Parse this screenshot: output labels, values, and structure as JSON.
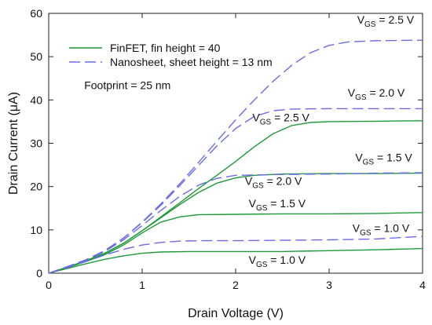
{
  "chart_data": {
    "type": "line",
    "xlabel": "Drain Voltage (V)",
    "ylabel": "Drain Current (μA)",
    "xlim": [
      0,
      4
    ],
    "ylim": [
      0,
      60
    ],
    "x_ticks": [
      0,
      1,
      2,
      3,
      4
    ],
    "y_ticks": [
      0,
      10,
      20,
      30,
      40,
      50,
      60
    ],
    "grid": false,
    "legend_position": "top-left",
    "legend": [
      {
        "label": "FinFET, fin height = 40",
        "style": "solid",
        "color": "#1f9a3a"
      },
      {
        "label": "Nanosheet, sheet height = 13 nm",
        "style": "dashed",
        "color": "#6b6be8"
      }
    ],
    "annotations": [
      {
        "text": "Footprint = 25 nm",
        "x": 0.38,
        "y": 42.5
      }
    ],
    "series": [
      {
        "group": "FinFET",
        "vgs": "2.5 V",
        "style": "solid",
        "color": "#1f9a3a",
        "label": {
          "prefix": "V",
          "sub": "GS",
          "suffix": " = 2.5 V",
          "x": 2.18,
          "y": 35.1
        },
        "points": [
          [
            0,
            0
          ],
          [
            0.2,
            1.4
          ],
          [
            0.4,
            2.9
          ],
          [
            0.6,
            4.6
          ],
          [
            0.8,
            6.9
          ],
          [
            1.0,
            9.8
          ],
          [
            1.2,
            13.0
          ],
          [
            1.4,
            16.2
          ],
          [
            1.6,
            19.5
          ],
          [
            1.8,
            22.6
          ],
          [
            2.0,
            25.8
          ],
          [
            2.2,
            29.2
          ],
          [
            2.4,
            32.2
          ],
          [
            2.6,
            34.1
          ],
          [
            2.8,
            34.8
          ],
          [
            3.0,
            35.0
          ],
          [
            3.5,
            35.1
          ],
          [
            4.0,
            35.2
          ]
        ]
      },
      {
        "group": "FinFET",
        "vgs": "2.0 V",
        "style": "solid",
        "color": "#1f9a3a",
        "label": {
          "prefix": "V",
          "sub": "GS",
          "suffix": " = 2.0 V",
          "x": 2.1,
          "y": 20.4
        },
        "points": [
          [
            0,
            0
          ],
          [
            0.2,
            1.4
          ],
          [
            0.4,
            2.9
          ],
          [
            0.6,
            4.6
          ],
          [
            0.8,
            6.9
          ],
          [
            1.0,
            9.8
          ],
          [
            1.2,
            12.8
          ],
          [
            1.4,
            15.8
          ],
          [
            1.6,
            18.6
          ],
          [
            1.8,
            20.8
          ],
          [
            2.0,
            22.0
          ],
          [
            2.2,
            22.6
          ],
          [
            2.5,
            22.9
          ],
          [
            3.0,
            23.0
          ],
          [
            3.5,
            23.0
          ],
          [
            4.0,
            23.1
          ]
        ]
      },
      {
        "group": "FinFET",
        "vgs": "1.5 V",
        "style": "solid",
        "color": "#1f9a3a",
        "label": {
          "prefix": "V",
          "sub": "GS",
          "suffix": " = 1.5 V",
          "x": 2.14,
          "y": 15.2
        },
        "points": [
          [
            0,
            0
          ],
          [
            0.2,
            1.3
          ],
          [
            0.4,
            2.7
          ],
          [
            0.6,
            4.3
          ],
          [
            0.8,
            6.5
          ],
          [
            1.0,
            9.3
          ],
          [
            1.2,
            11.8
          ],
          [
            1.4,
            13.0
          ],
          [
            1.6,
            13.5
          ],
          [
            2.0,
            13.6
          ],
          [
            2.5,
            13.7
          ],
          [
            3.0,
            13.7
          ],
          [
            3.5,
            13.8
          ],
          [
            4.0,
            14.0
          ]
        ]
      },
      {
        "group": "FinFET",
        "vgs": "1.0 V",
        "style": "solid",
        "color": "#1f9a3a",
        "label": {
          "prefix": "V",
          "sub": "GS",
          "suffix": " = 1.0 V",
          "x": 2.14,
          "y": 2.2
        },
        "points": [
          [
            0,
            0
          ],
          [
            0.2,
            1.1
          ],
          [
            0.4,
            2.2
          ],
          [
            0.6,
            3.2
          ],
          [
            0.8,
            4.0
          ],
          [
            1.0,
            4.6
          ],
          [
            1.2,
            4.9
          ],
          [
            1.5,
            5.0
          ],
          [
            2.0,
            5.0
          ],
          [
            2.5,
            5.0
          ],
          [
            3.0,
            5.2
          ],
          [
            3.5,
            5.4
          ],
          [
            4.0,
            5.7
          ]
        ]
      },
      {
        "group": "Nanosheet",
        "vgs": "2.5 V",
        "style": "dashed",
        "color": "#6b6be8",
        "label": {
          "prefix": "V",
          "sub": "GS",
          "suffix": " = 2.5 V",
          "x": 3.3,
          "y": 57.6
        },
        "points": [
          [
            0,
            0
          ],
          [
            0.2,
            1.5
          ],
          [
            0.4,
            3.1
          ],
          [
            0.6,
            5.2
          ],
          [
            0.8,
            8.1
          ],
          [
            1.0,
            11.8
          ],
          [
            1.2,
            16.0
          ],
          [
            1.4,
            20.6
          ],
          [
            1.6,
            25.5
          ],
          [
            1.8,
            30.5
          ],
          [
            2.0,
            35.4
          ],
          [
            2.2,
            40.0
          ],
          [
            2.4,
            44.3
          ],
          [
            2.6,
            48.0
          ],
          [
            2.8,
            50.9
          ],
          [
            3.0,
            52.6
          ],
          [
            3.2,
            53.4
          ],
          [
            3.5,
            53.7
          ],
          [
            4.0,
            53.8
          ]
        ]
      },
      {
        "group": "Nanosheet",
        "vgs": "2.0 V",
        "style": "dashed",
        "color": "#6b6be8",
        "label": {
          "prefix": "V",
          "sub": "GS",
          "suffix": " = 2.0 V",
          "x": 3.2,
          "y": 40.8
        },
        "points": [
          [
            0,
            0
          ],
          [
            0.2,
            1.5
          ],
          [
            0.4,
            3.1
          ],
          [
            0.6,
            5.2
          ],
          [
            0.8,
            8.1
          ],
          [
            1.0,
            11.7
          ],
          [
            1.2,
            15.7
          ],
          [
            1.4,
            20.2
          ],
          [
            1.6,
            24.8
          ],
          [
            1.8,
            29.4
          ],
          [
            2.0,
            33.4
          ],
          [
            2.2,
            36.2
          ],
          [
            2.4,
            37.5
          ],
          [
            2.6,
            37.9
          ],
          [
            3.0,
            38.0
          ],
          [
            3.5,
            38.0
          ],
          [
            4.0,
            38.0
          ]
        ]
      },
      {
        "group": "Nanosheet",
        "vgs": "1.5 V",
        "style": "dashed",
        "color": "#6b6be8",
        "label": {
          "prefix": "V",
          "sub": "GS",
          "suffix": " = 1.5 V",
          "x": 3.28,
          "y": 25.8
        },
        "points": [
          [
            0,
            0
          ],
          [
            0.2,
            1.5
          ],
          [
            0.4,
            3.0
          ],
          [
            0.6,
            5.0
          ],
          [
            0.8,
            7.7
          ],
          [
            1.0,
            11.0
          ],
          [
            1.2,
            14.5
          ],
          [
            1.4,
            17.7
          ],
          [
            1.6,
            20.3
          ],
          [
            1.8,
            21.9
          ],
          [
            2.0,
            22.6
          ],
          [
            2.5,
            22.8
          ],
          [
            3.0,
            22.9
          ],
          [
            3.5,
            23.1
          ],
          [
            4.0,
            23.2
          ]
        ]
      },
      {
        "group": "Nanosheet",
        "vgs": "1.0 V",
        "style": "dashed",
        "color": "#6b6be8",
        "label": {
          "prefix": "V",
          "sub": "GS",
          "suffix": " = 1.0 V",
          "x": 3.25,
          "y": 9.5
        },
        "points": [
          [
            0,
            0
          ],
          [
            0.2,
            1.3
          ],
          [
            0.4,
            2.7
          ],
          [
            0.6,
            4.2
          ],
          [
            0.8,
            5.5
          ],
          [
            1.0,
            6.5
          ],
          [
            1.2,
            7.1
          ],
          [
            1.4,
            7.4
          ],
          [
            1.6,
            7.5
          ],
          [
            2.0,
            7.5
          ],
          [
            2.5,
            7.6
          ],
          [
            3.0,
            7.7
          ],
          [
            3.5,
            7.9
          ],
          [
            4.0,
            8.5
          ]
        ]
      }
    ]
  }
}
